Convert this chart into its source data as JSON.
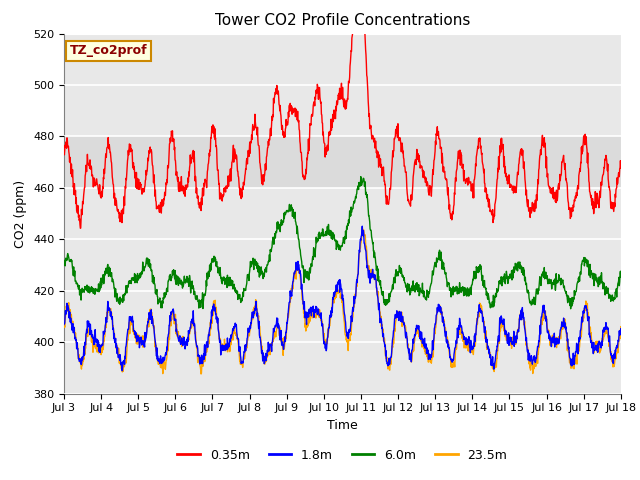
{
  "title": "Tower CO2 Profile Concentrations",
  "xlabel": "Time",
  "ylabel": "CO2 (ppm)",
  "ylim": [
    380,
    520
  ],
  "yticks": [
    380,
    400,
    420,
    440,
    460,
    480,
    500,
    520
  ],
  "xticklabels": [
    "Jul 3",
    "Jul 4",
    "Jul 5",
    "Jul 6",
    "Jul 7",
    "Jul 8",
    "Jul 9",
    "Jul 10",
    "Jul 11",
    "Jul 12",
    "Jul 13",
    "Jul 14",
    "Jul 15",
    "Jul 16",
    "Jul 17",
    "Jul 18"
  ],
  "series_colors": [
    "red",
    "blue",
    "green",
    "orange"
  ],
  "series_labels": [
    "0.35m",
    "1.8m",
    "6.0m",
    "23.5m"
  ],
  "legend_label": "TZ_co2prof",
  "plot_bg_color": "#e8e8e8",
  "shaded_band_color": "#d0d0d0",
  "grid_color": "white",
  "days": 15,
  "n_points": 1500
}
